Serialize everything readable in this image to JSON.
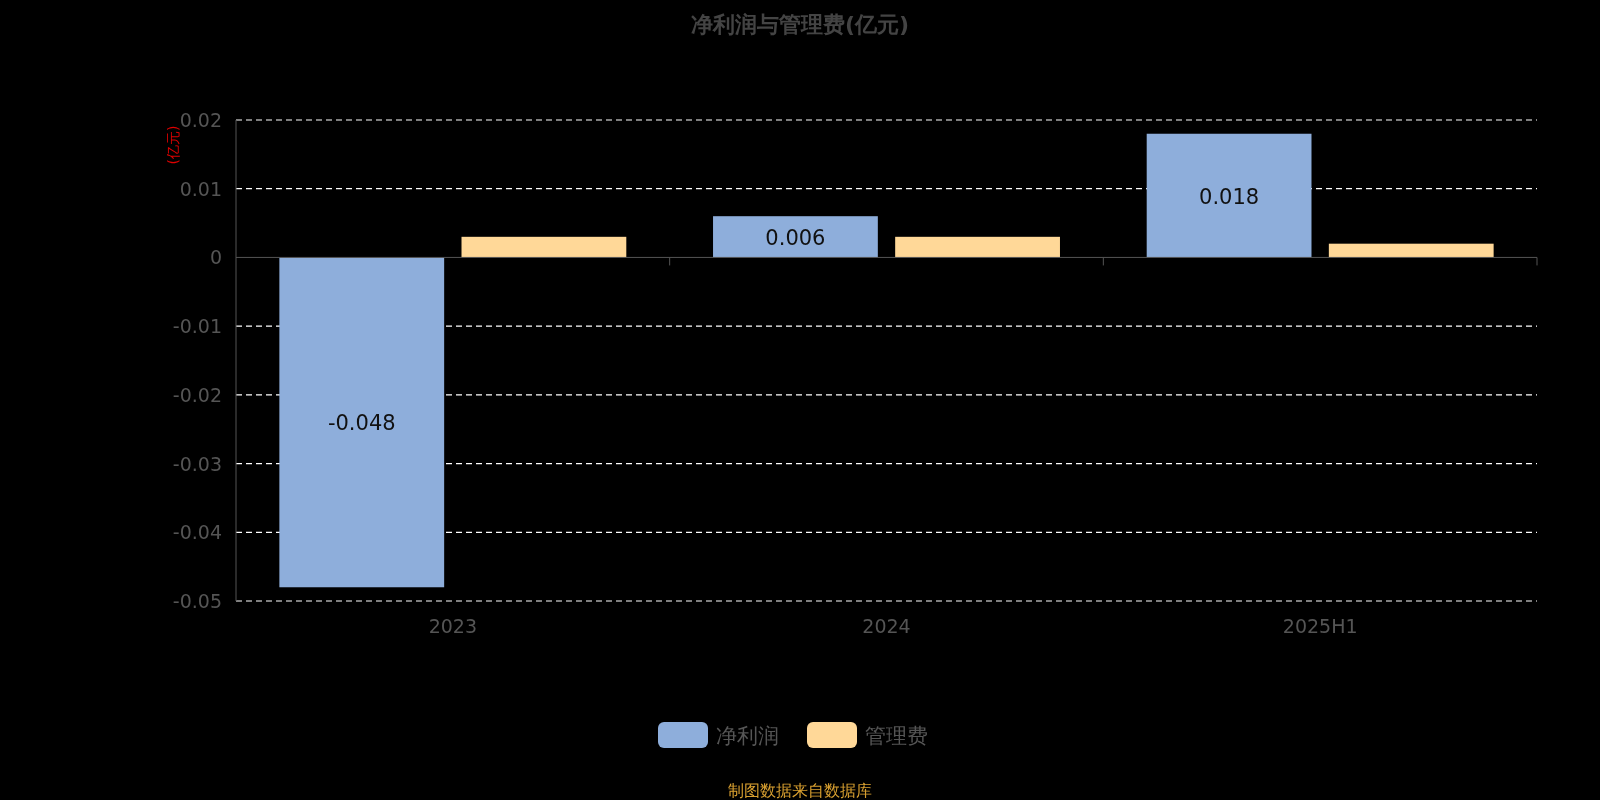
{
  "chart_data": {
    "type": "bar",
    "title": "净利润与管理费(亿元)",
    "ylabel": "(亿元)",
    "categories": [
      "2023",
      "2024",
      "2025H1"
    ],
    "series": [
      {
        "name": "净利润",
        "color": "#8eaedb",
        "values": [
          -0.048,
          0.006,
          0.018
        ],
        "value_labels": [
          "-0.048",
          "0.006",
          "0.018"
        ]
      },
      {
        "name": "管理费",
        "color": "#ffd898",
        "values": [
          0.003,
          0.003,
          0.002
        ]
      }
    ],
    "ylim": [
      -0.05,
      0.02
    ],
    "yticks": [
      -0.05,
      -0.04,
      -0.03,
      -0.02,
      -0.01,
      0,
      0.01,
      0.02
    ],
    "grid": "y",
    "legend": "bottom",
    "annotations": [
      "制图数据来自数据库"
    ]
  }
}
